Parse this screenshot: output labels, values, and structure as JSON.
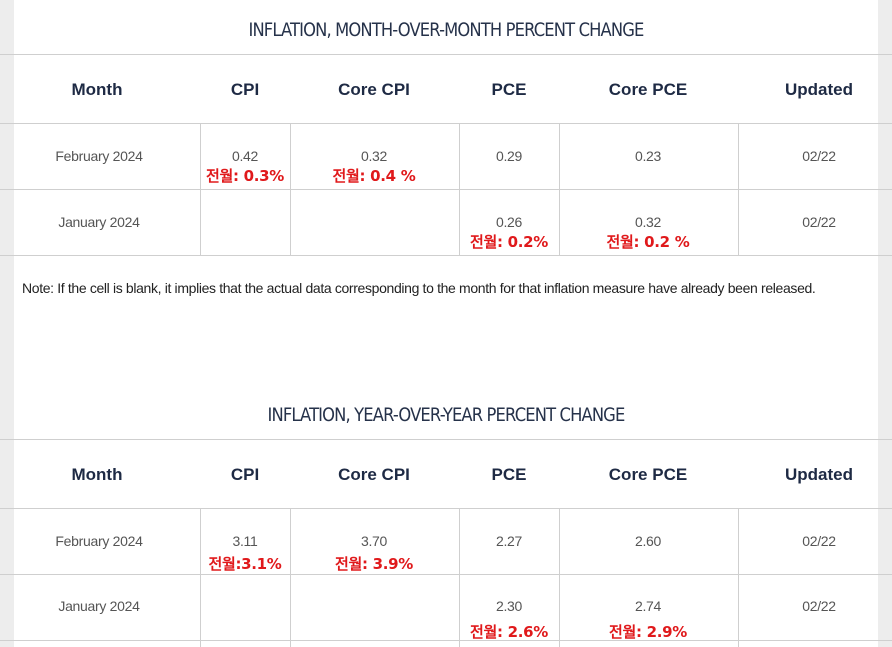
{
  "mom": {
    "title": "INFLATION, MONTH-OVER-MONTH PERCENT CHANGE",
    "headers": [
      "Month",
      "CPI",
      "Core CPI",
      "PCE",
      "Core PCE",
      "Updated"
    ],
    "rows": [
      {
        "month": "February 2024",
        "cpi": "0.42",
        "cpi_prev": "전월: 0.3%",
        "core_cpi": "0.32",
        "core_cpi_prev": "전월: 0.4 %",
        "pce": "0.29",
        "pce_prev": "",
        "core_pce": "0.23",
        "core_pce_prev": "",
        "updated": "02/22"
      },
      {
        "month": "January 2024",
        "cpi": "",
        "cpi_prev": "",
        "core_cpi": "",
        "core_cpi_prev": "",
        "pce": "0.26",
        "pce_prev": "전월: 0.2%",
        "core_pce": "0.32",
        "core_pce_prev": "전월: 0.2 %",
        "updated": "02/22"
      }
    ]
  },
  "note": "Note: If the cell is blank, it implies that the actual data corresponding to the month for that inflation measure have already been released.",
  "yoy": {
    "title": "INFLATION, YEAR-OVER-YEAR PERCENT CHANGE",
    "headers": [
      "Month",
      "CPI",
      "Core CPI",
      "PCE",
      "Core PCE",
      "Updated"
    ],
    "rows": [
      {
        "month": "February 2024",
        "cpi": "3.11",
        "cpi_prev": "전월:3.1%",
        "core_cpi": "3.70",
        "core_cpi_prev": "전월: 3.9%",
        "pce": "2.27",
        "pce_prev": "",
        "core_pce": "2.60",
        "core_pce_prev": "",
        "updated": "02/22"
      },
      {
        "month": "January 2024",
        "cpi": "",
        "cpi_prev": "",
        "core_cpi": "",
        "core_cpi_prev": "",
        "pce": "2.30",
        "pce_prev": "전월: 2.6%",
        "core_pce": "2.74",
        "core_pce_prev": "전월: 2.9%",
        "updated": "02/22"
      }
    ]
  },
  "colors": {
    "header_text": "#1e2a44",
    "annotation_red": "#e0191b",
    "grid": "#cfcfcf"
  }
}
